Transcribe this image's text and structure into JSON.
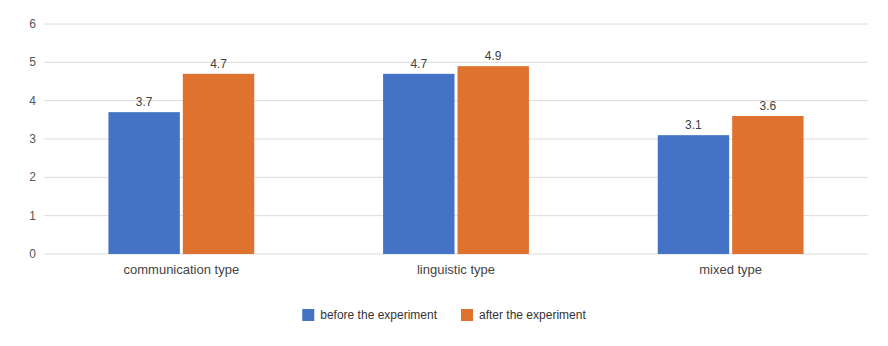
{
  "chart_data": {
    "type": "bar",
    "categories": [
      "communication type",
      "linguistic type",
      "mixed type"
    ],
    "series": [
      {
        "name": "before the experiment",
        "color": "#4472c4",
        "values": [
          3.7,
          4.7,
          3.1
        ]
      },
      {
        "name": "after the experiment",
        "color": "#e07230",
        "values": [
          4.7,
          4.9,
          3.6
        ]
      }
    ],
    "ylim": [
      0,
      6
    ],
    "yticks": [
      0,
      1,
      2,
      3,
      4,
      5,
      6
    ],
    "grid": true,
    "data_labels": true,
    "legend": "bottom"
  }
}
